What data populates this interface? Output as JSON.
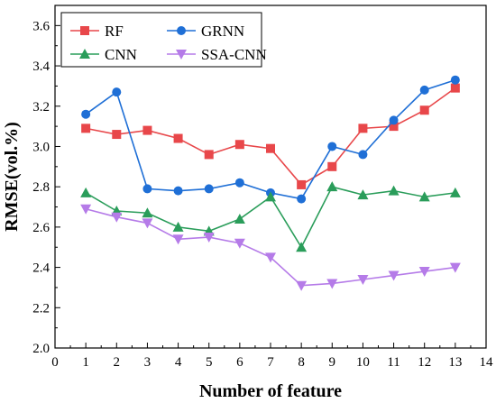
{
  "chart_data": {
    "type": "line",
    "xlabel": "Number of feature",
    "ylabel": "RMSE(vol.%)",
    "xlim": [
      0,
      14
    ],
    "ylim": [
      2.0,
      3.7
    ],
    "xticks": [
      0,
      1,
      2,
      3,
      4,
      5,
      6,
      7,
      8,
      9,
      10,
      11,
      12,
      13,
      14
    ],
    "yticks": [
      2.0,
      2.2,
      2.4,
      2.6,
      2.8,
      3.0,
      3.2,
      3.4,
      3.6
    ],
    "ytick_labels": [
      "2.0",
      "2.2",
      "2.4",
      "2.6",
      "2.8",
      "3.0",
      "3.2",
      "3.4",
      "3.6"
    ],
    "grid": false,
    "legend_position": "top-left",
    "x": [
      1,
      2,
      3,
      4,
      5,
      6,
      7,
      8,
      9,
      10,
      11,
      12,
      13
    ],
    "series": [
      {
        "name": "RF",
        "color": "#e8474a",
        "marker": "square",
        "values": [
          3.09,
          3.06,
          3.08,
          3.04,
          2.96,
          3.01,
          2.99,
          2.81,
          2.9,
          3.09,
          3.1,
          3.18,
          3.29
        ]
      },
      {
        "name": "GRNN",
        "color": "#1f6fd6",
        "marker": "circle",
        "values": [
          3.16,
          3.27,
          2.79,
          2.78,
          2.79,
          2.82,
          2.77,
          2.74,
          3.0,
          2.96,
          3.13,
          3.28,
          3.33
        ]
      },
      {
        "name": "CNN",
        "color": "#2a9d5a",
        "marker": "triangle-up",
        "values": [
          2.77,
          2.68,
          2.67,
          2.6,
          2.58,
          2.64,
          2.75,
          2.5,
          2.8,
          2.76,
          2.78,
          2.75,
          2.77
        ]
      },
      {
        "name": "SSA-CNN",
        "color": "#b57be8",
        "marker": "triangle-down",
        "values": [
          2.69,
          2.65,
          2.62,
          2.54,
          2.55,
          2.52,
          2.45,
          2.31,
          2.32,
          2.34,
          2.36,
          2.38,
          2.4
        ]
      }
    ]
  }
}
